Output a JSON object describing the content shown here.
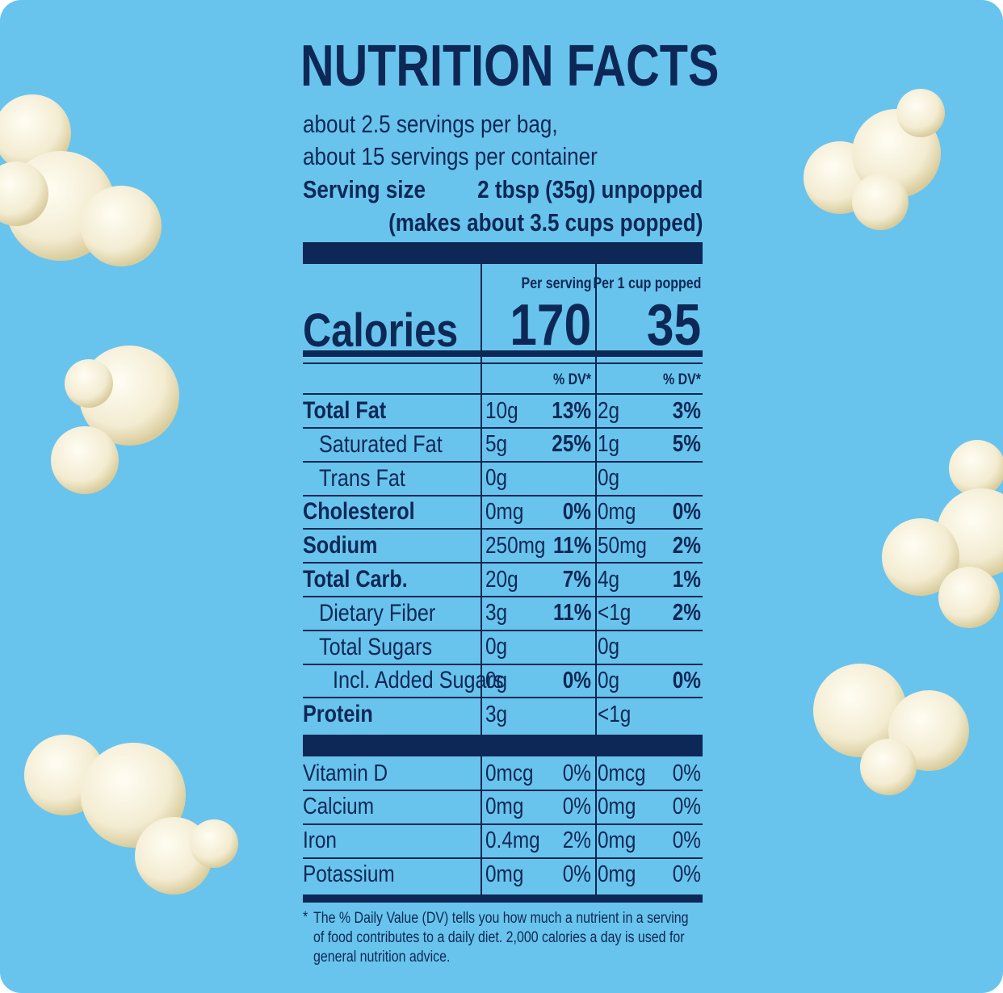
{
  "title": "NUTRITION FACTS",
  "servings": [
    "about 2.5 servings per bag,",
    "about 15 servings per container"
  ],
  "serving_size": {
    "label": "Serving size",
    "value": "2 tbsp (35g) unpopped",
    "note": "(makes about 3.5 cups popped)"
  },
  "calories": {
    "label": "Calories",
    "columns": [
      {
        "header": "Per serving",
        "value": "170"
      },
      {
        "header": "Per 1 cup popped",
        "value": "35"
      }
    ]
  },
  "dv_header": "% DV*",
  "nutrients": [
    {
      "name": "Total Fat",
      "level": 0,
      "bold": true,
      "cells": [
        "10g",
        "13%",
        "2g",
        "3%"
      ]
    },
    {
      "name": "Saturated Fat",
      "level": 1,
      "bold": false,
      "cells": [
        "5g",
        "25%",
        "1g",
        "5%"
      ]
    },
    {
      "name": "Trans Fat",
      "level": 1,
      "bold": false,
      "cells": [
        "0g",
        null,
        "0g",
        null
      ]
    },
    {
      "name": "Cholesterol",
      "level": 0,
      "bold": true,
      "cells": [
        "0mg",
        "0%",
        "0mg",
        "0%"
      ]
    },
    {
      "name": "Sodium",
      "level": 0,
      "bold": true,
      "cells": [
        "250mg",
        "11%",
        "50mg",
        "2%"
      ]
    },
    {
      "name": "Total Carb.",
      "level": 0,
      "bold": true,
      "cells": [
        "20g",
        "7%",
        "4g",
        "1%"
      ]
    },
    {
      "name": "Dietary Fiber",
      "level": 1,
      "bold": false,
      "cells": [
        "3g",
        "11%",
        "<1g",
        "2%"
      ]
    },
    {
      "name": "Total Sugars",
      "level": 1,
      "bold": false,
      "cells": [
        "0g",
        null,
        "0g",
        null
      ]
    },
    {
      "name": "Incl. Added Sugars",
      "level": 2,
      "bold": false,
      "cells": [
        "0g",
        "0%",
        "0g",
        "0%"
      ]
    },
    {
      "name": "Protein",
      "level": 0,
      "bold": true,
      "cells": [
        "3g",
        null,
        "<1g",
        null
      ]
    }
  ],
  "vitamins": [
    {
      "name": "Vitamin D",
      "cells": [
        "0mcg",
        "0%",
        "0mcg",
        "0%"
      ]
    },
    {
      "name": "Calcium",
      "cells": [
        "0mg",
        "0%",
        "0mg",
        "0%"
      ]
    },
    {
      "name": "Iron",
      "cells": [
        "0.4mg",
        "2%",
        "0mg",
        "0%"
      ]
    },
    {
      "name": "Potassium",
      "cells": [
        "0mg",
        "0%",
        "0mg",
        "0%"
      ]
    }
  ],
  "footnote": {
    "marker": "*",
    "text": "The % Daily Value (DV) tells you how much a nutrient in a serving of food contributes to a daily diet. 2,000 calories a day is used for general nutrition advice."
  }
}
